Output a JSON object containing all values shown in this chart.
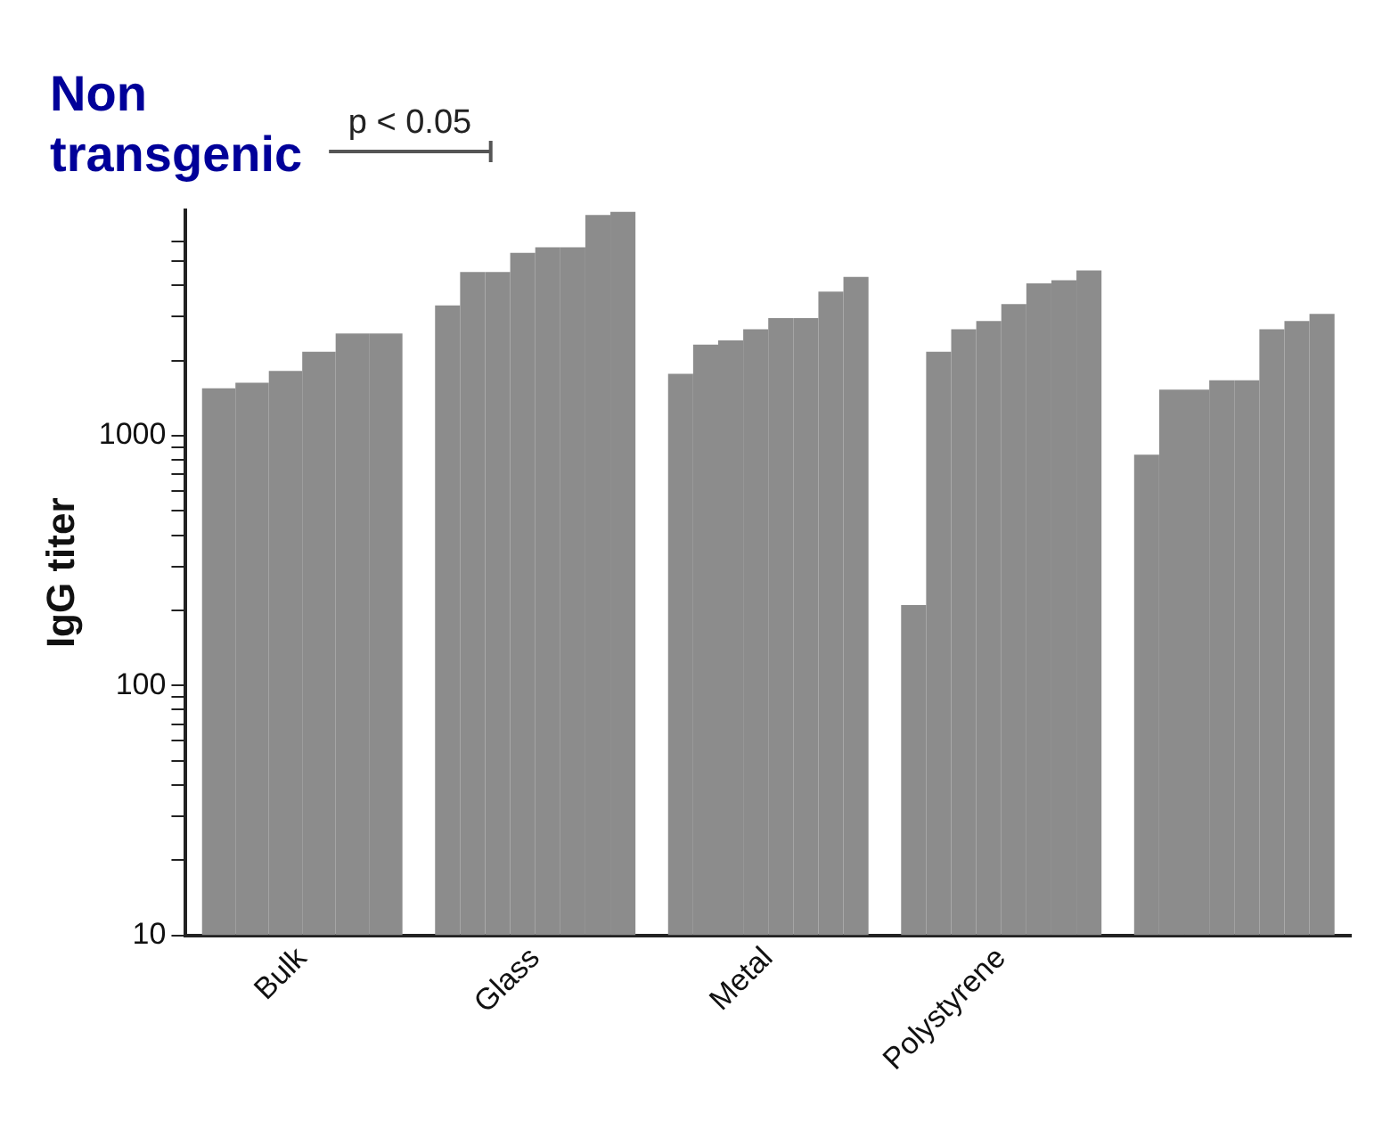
{
  "chart_data": {
    "type": "bar",
    "title": "Non transgenic",
    "ylabel": "IgG titer",
    "categories": [
      "Bulk",
      "Glass",
      "Metal",
      "Polystyrene",
      null
    ],
    "series": [
      {
        "color": "#8c8c8c",
        "values": [
          1550,
          3330,
          1770,
          210,
          840
        ]
      },
      {
        "color": "#8c8c8c",
        "values": [
          1630,
          4530,
          2320,
          2170,
          1530
        ]
      },
      {
        "color": "#8c8c8c",
        "values": [
          1820,
          4530,
          2410,
          2670,
          1530
        ]
      },
      {
        "color": "#8c8c8c",
        "values": [
          2170,
          5400,
          2670,
          2880,
          1670
        ]
      },
      {
        "color": "#8c8c8c",
        "values": [
          2570,
          5690,
          2960,
          3370,
          1670
        ]
      },
      {
        "color": "#8c8c8c",
        "values": [
          2570,
          5690,
          2960,
          4080,
          2670
        ]
      },
      {
        "color": "#8c8c8c",
        "values": [
          null,
          7660,
          3780,
          4200,
          2880
        ]
      },
      {
        "color": "#8c8c8c",
        "values": [
          null,
          7890,
          4330,
          4590,
          3080
        ]
      }
    ],
    "log": true,
    "ylim": [
      10,
      8000
    ],
    "yticks": [
      10,
      {
        "value": 20,
        "label": null
      },
      {
        "value": 30,
        "label": null
      },
      {
        "value": 40,
        "label": null
      },
      {
        "value": 50,
        "label": null
      },
      {
        "value": 60,
        "label": null
      },
      {
        "value": 70,
        "label": null
      },
      {
        "value": 80,
        "label": null
      },
      {
        "value": 90,
        "label": null
      },
      100,
      {
        "value": 200,
        "label": null
      },
      {
        "value": 300,
        "label": null
      },
      {
        "value": 400,
        "label": null
      },
      {
        "value": 500,
        "label": null
      },
      {
        "value": 600,
        "label": null
      },
      {
        "value": 700,
        "label": null
      },
      {
        "value": 800,
        "label": null
      },
      {
        "value": 900,
        "label": null
      },
      1000,
      {
        "value": 2000,
        "label": null
      },
      {
        "value": 3000,
        "label": null
      },
      {
        "value": 4000,
        "label": null
      },
      {
        "value": 5000,
        "label": null
      },
      {
        "value": 6000,
        "label": null
      }
    ],
    "annotations": [
      "p < 0.05"
    ],
    "grid": false,
    "legend": false
  }
}
